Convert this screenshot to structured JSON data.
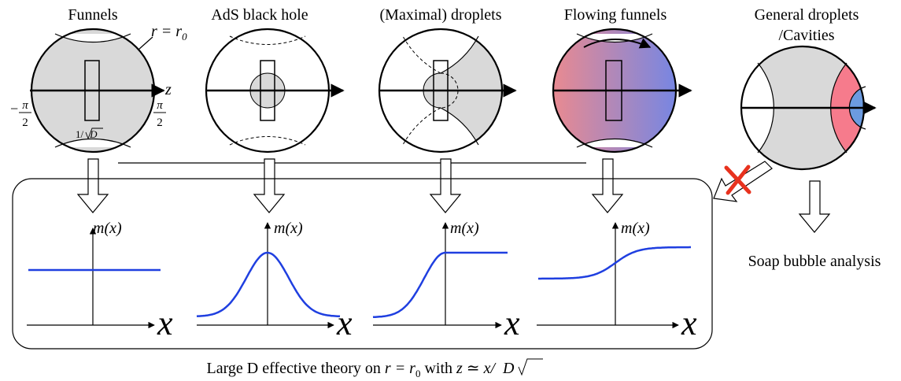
{
  "top_row": {
    "funnels": {
      "title": "Funnels",
      "r_label": "r = r",
      "r_sub": "0",
      "z_label": "z",
      "neg_pi": "π",
      "neg_sign": "−",
      "two": "2",
      "pos_pi": "π",
      "width_label": "1/",
      "width_sqrt_arg": "D"
    },
    "ads_black_hole": {
      "title": "AdS black hole"
    },
    "maximal_droplets": {
      "title": "(Maximal) droplets"
    },
    "flowing_funnels": {
      "title": "Flowing funnels"
    },
    "general_droplets": {
      "title_line1": "General droplets",
      "title_line2": "/Cavities"
    }
  },
  "soap_bubble": {
    "label": "Soap bubble analysis"
  },
  "plots": {
    "y_label": "m(x)",
    "x_label": "x"
  },
  "caption": {
    "text_a": "Large D effective theory on ",
    "r": "r = r",
    "r_sub": "0",
    "text_b": " with ",
    "z_rel": "z ≃ x/",
    "sqrt_arg": "D"
  },
  "colors": {
    "gray_fill": "#d9d9d9",
    "curve_blue": "#1f3fe0",
    "flow_red": "#f28a8a",
    "flow_blue": "#6f86e8",
    "cavity_red": "#f67b8c",
    "cavity_blue": "#6c9be0",
    "cross_red": "#e8321e"
  },
  "chart_data": [
    {
      "type": "line",
      "title": "Funnels",
      "ylabel": "m(x)",
      "xlabel": "x",
      "shape": "constant"
    },
    {
      "type": "line",
      "title": "AdS black hole",
      "ylabel": "m(x)",
      "xlabel": "x",
      "shape": "gaussian"
    },
    {
      "type": "line",
      "title": "(Maximal) droplets",
      "ylabel": "m(x)",
      "xlabel": "x",
      "shape": "rise-to-plateau"
    },
    {
      "type": "line",
      "title": "Flowing funnels",
      "ylabel": "m(x)",
      "xlabel": "x",
      "shape": "step between two plateaus"
    }
  ]
}
